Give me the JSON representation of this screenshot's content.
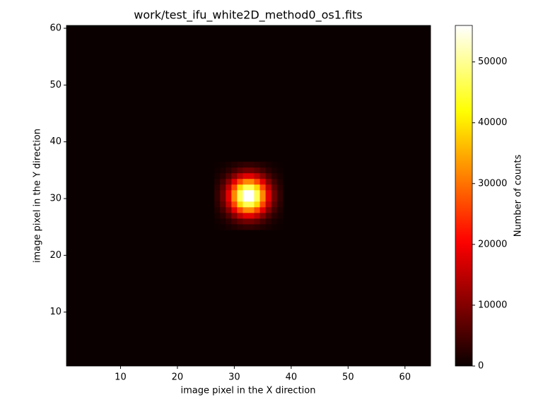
{
  "chart_data": {
    "type": "heatmap",
    "title": "work/test_ifu_white2D_method0_os1.fits",
    "x_label": "image pixel in the X direction",
    "y_label": "image pixel in the Y direction",
    "colorbar_label": "Number of counts",
    "colormap": "hot",
    "x": [
      27,
      28,
      29,
      30,
      31,
      32,
      33,
      34,
      35,
      36,
      37,
      38
    ],
    "y": [
      25,
      26,
      27,
      28,
      29,
      30,
      31,
      32,
      33,
      34,
      35,
      36
    ],
    "z": [
      [
        200,
        500,
        1100,
        1900,
        2700,
        3300,
        3300,
        2700,
        1900,
        1100,
        500,
        200
      ],
      [
        500,
        1300,
        2700,
        4800,
        7000,
        8500,
        8500,
        7000,
        4800,
        2700,
        1300,
        500
      ],
      [
        1100,
        2700,
        5800,
        10200,
        14900,
        18000,
        18000,
        14900,
        10200,
        5800,
        2700,
        1100
      ],
      [
        1900,
        4800,
        10200,
        18000,
        26300,
        31800,
        31800,
        26300,
        18000,
        10200,
        4800,
        1900
      ],
      [
        2700,
        7000,
        14900,
        26300,
        38400,
        46400,
        46400,
        38400,
        26300,
        14900,
        7000,
        2700
      ],
      [
        3300,
        8500,
        18000,
        31800,
        46400,
        56000,
        56000,
        46400,
        31800,
        18000,
        8500,
        3300
      ],
      [
        3300,
        8500,
        18000,
        31800,
        46400,
        56000,
        56000,
        46400,
        31800,
        18000,
        8500,
        3300
      ],
      [
        2700,
        7000,
        14900,
        26300,
        38400,
        46400,
        46400,
        38400,
        26300,
        14900,
        7000,
        2700
      ],
      [
        1900,
        4800,
        10200,
        18000,
        26300,
        31800,
        31800,
        26300,
        18000,
        10200,
        4800,
        1900
      ],
      [
        1100,
        2700,
        5800,
        10200,
        14900,
        18000,
        18000,
        14900,
        10200,
        5800,
        2700,
        1100
      ],
      [
        500,
        1300,
        2700,
        4800,
        7000,
        8500,
        8500,
        7000,
        4800,
        2700,
        1300,
        500
      ],
      [
        200,
        500,
        1100,
        1900,
        2700,
        3300,
        3300,
        2700,
        1900,
        1100,
        500,
        200
      ]
    ],
    "xlim": [
      0.5,
      64.5
    ],
    "xticks": [
      10,
      20,
      30,
      40,
      50,
      60
    ],
    "ylim": [
      0.5,
      60.5
    ],
    "yticks": [
      10,
      20,
      30,
      40,
      50,
      60
    ],
    "zlim": [
      0,
      56000
    ],
    "zticks": [
      0,
      10000,
      20000,
      30000,
      40000,
      50000
    ]
  }
}
